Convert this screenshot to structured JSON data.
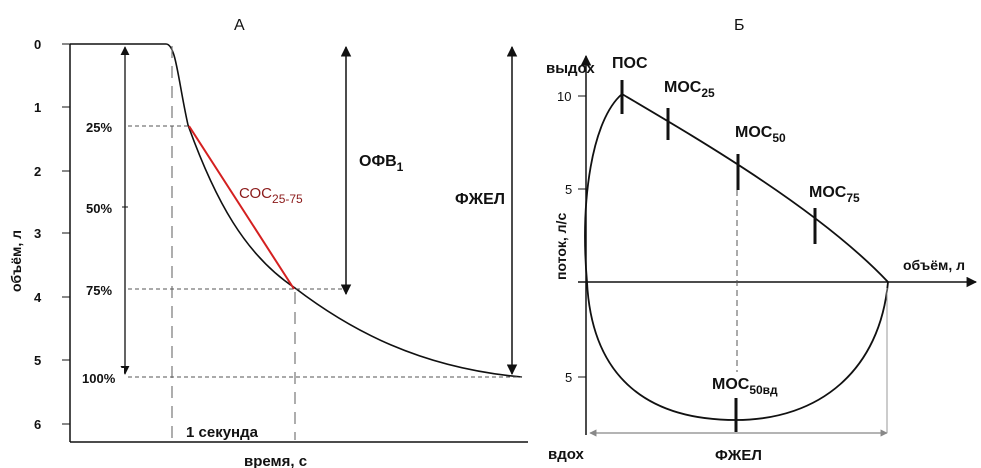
{
  "panel_a": {
    "title": "А",
    "ylabel": "объём, л",
    "xlabel": "время, с",
    "y_ticks": [
      "0",
      "1",
      "2",
      "3",
      "4",
      "5",
      "6"
    ],
    "percent_labels": [
      "25%",
      "50%",
      "75%",
      "100%"
    ],
    "ofv1_main": "ОФВ",
    "ofv1_sub": "1",
    "fzhel_label": "ФЖЕЛ",
    "soc_main": "СОС",
    "soc_sub": "25-75",
    "second_label": "1 секунда"
  },
  "panel_b": {
    "title": "Б",
    "exhale_label": "выдох",
    "inhale_label": "вдох",
    "ylabel": "поток, л/с",
    "xlabel": "объём, л",
    "tick_10": "10",
    "tick_5_top": "5",
    "tick_5_bottom": "5",
    "pos_label": "ПОС",
    "mos25_main": "МОС",
    "mos25_sub": "25",
    "mos50_main": "МОС",
    "mos50_sub": "50",
    "mos75_main": "МОС",
    "mos75_sub": "75",
    "mos50vd_main": "МОС",
    "mos50vd_sub": "50вд",
    "fzhel_label": "ФЖЕЛ"
  },
  "colors": {
    "line": "#111111",
    "soc_line": "#d42020",
    "soc_text": "#8b1a1a",
    "dashed": "#777777"
  }
}
